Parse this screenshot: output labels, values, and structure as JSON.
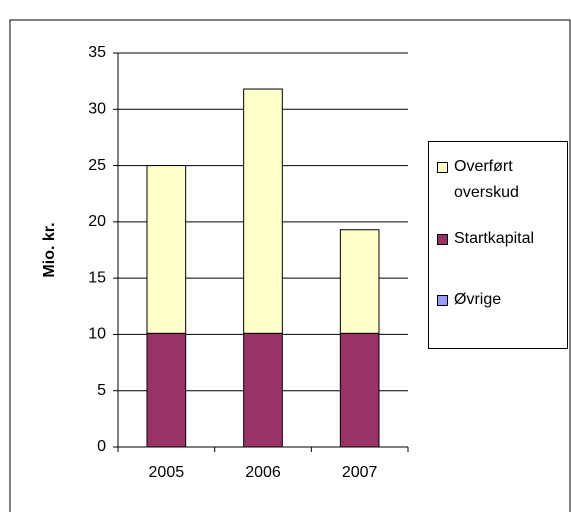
{
  "chart_data": {
    "type": "stacked_bar",
    "ylabel": "Mio. kr.",
    "categories": [
      "2005",
      "2006",
      "2007"
    ],
    "series": [
      {
        "name": "Øvrige",
        "color": "#9999ff",
        "values": [
          0,
          0,
          0
        ]
      },
      {
        "name": "Startkapital",
        "color": "#993366",
        "values": [
          10.1,
          10.1,
          10.1
        ]
      },
      {
        "name": "Overført overskud",
        "color": "#ffffcc",
        "values": [
          14.9,
          21.7,
          9.2
        ]
      }
    ],
    "ylim": [
      0,
      35
    ],
    "yticks": [
      0,
      5,
      10,
      15,
      20,
      25,
      30,
      35
    ],
    "grid": true,
    "legend": "right"
  }
}
